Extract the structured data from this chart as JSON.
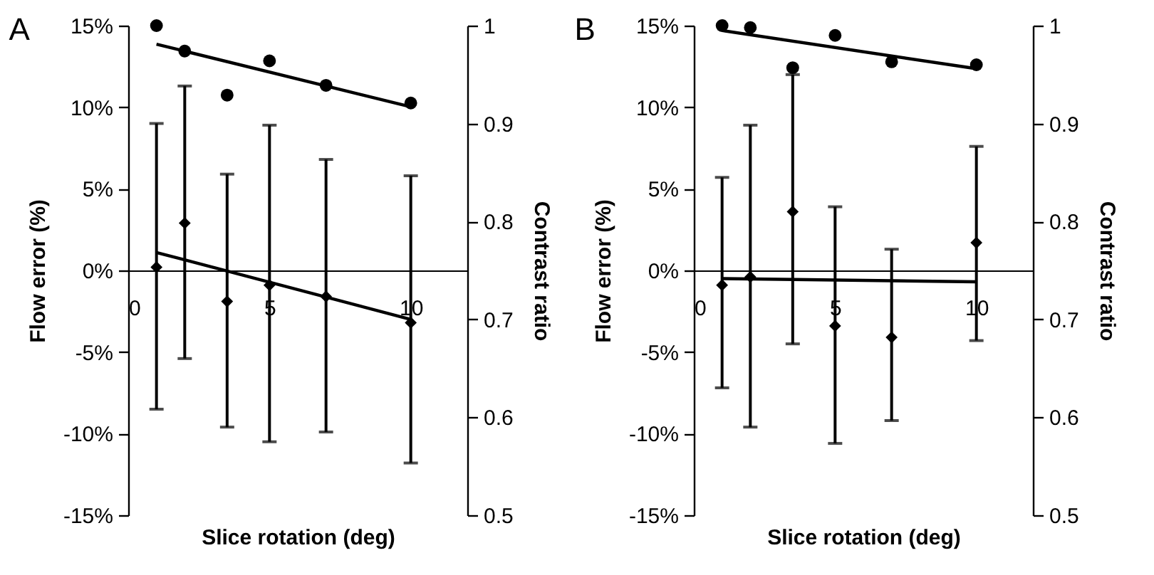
{
  "chart_data": [
    {
      "type": "scatter",
      "title": "A",
      "xlabel": "Slice rotation (deg)",
      "ylabel": "Flow error (%)",
      "y2label": "Contrast ratio",
      "xlim": [
        0,
        12
      ],
      "xticks": [
        0,
        5,
        10
      ],
      "ylim": [
        -15,
        15
      ],
      "yticks": [
        {
          "value": -15,
          "label": "-15%"
        },
        {
          "value": -10,
          "label": "-10%"
        },
        {
          "value": -5,
          "label": "-5%"
        },
        {
          "value": 0,
          "label": "0%"
        },
        {
          "value": 5,
          "label": "5%"
        },
        {
          "value": 10,
          "label": "10%"
        },
        {
          "value": 15,
          "label": "15%"
        }
      ],
      "y2lim": [
        0.5,
        1
      ],
      "y2ticks": [
        0.5,
        0.6,
        0.7,
        0.8,
        0.9,
        1
      ],
      "series": [
        {
          "marker": "diamond",
          "color": "#000000",
          "x": [
            1,
            2,
            3.5,
            5,
            7,
            10
          ],
          "values": [
            0.2,
            2.9,
            -1.9,
            -0.9,
            -1.6,
            -3.2
          ],
          "errors": [
            [
              -8.5,
              9.0
            ],
            [
              -5.4,
              11.3
            ],
            [
              -9.6,
              5.9
            ],
            [
              -10.5,
              8.9
            ],
            [
              -9.9,
              6.8
            ],
            [
              -11.8,
              5.8
            ]
          ]
        },
        {
          "marker": "circle",
          "axis": "y2",
          "color": "#000000",
          "x": [
            1,
            2,
            3.5,
            5,
            7,
            10
          ],
          "values": [
            1.0,
            0.974,
            0.929,
            0.964,
            0.939,
            0.921
          ]
        },
        {
          "type": "line",
          "color": "#000000",
          "x": [
            1,
            10
          ],
          "values": [
            1.1,
            -3.0
          ]
        },
        {
          "type": "line",
          "axis": "y2",
          "color": "#000000",
          "x": [
            1,
            10
          ],
          "values": [
            0.981,
            0.917
          ]
        }
      ]
    },
    {
      "type": "scatter",
      "title": "B",
      "xlabel": "Slice rotation (deg)",
      "ylabel": "Flow error (%)",
      "y2label": "Contrast ratio",
      "xlim": [
        0,
        12
      ],
      "xticks": [
        0,
        5,
        10
      ],
      "ylim": [
        -15,
        15
      ],
      "yticks": [
        {
          "value": -15,
          "label": "-15%"
        },
        {
          "value": -10,
          "label": "-10%"
        },
        {
          "value": -5,
          "label": "-5%"
        },
        {
          "value": 0,
          "label": "0%"
        },
        {
          "value": 5,
          "label": "5%"
        },
        {
          "value": 10,
          "label": "10%"
        },
        {
          "value": 15,
          "label": "15%"
        }
      ],
      "y2lim": [
        0.5,
        1
      ],
      "y2ticks": [
        0.5,
        0.6,
        0.7,
        0.8,
        0.9,
        1
      ],
      "series": [
        {
          "marker": "diamond",
          "color": "#000000",
          "x": [
            1,
            2,
            3.5,
            5,
            7,
            10
          ],
          "values": [
            -0.9,
            -0.4,
            3.6,
            -3.4,
            -4.1,
            1.7
          ],
          "errors": [
            [
              -7.2,
              5.7
            ],
            [
              -9.6,
              8.9
            ],
            [
              -4.5,
              12.0
            ],
            [
              -10.6,
              3.9
            ],
            [
              -9.2,
              1.3
            ],
            [
              -4.3,
              7.6
            ]
          ]
        },
        {
          "marker": "circle",
          "axis": "y2",
          "color": "#000000",
          "x": [
            1,
            2,
            3.5,
            5,
            7,
            10
          ],
          "values": [
            1.0,
            0.998,
            0.957,
            0.99,
            0.963,
            0.96
          ]
        },
        {
          "type": "line",
          "color": "#000000",
          "x": [
            1,
            10
          ],
          "values": [
            -0.5,
            -0.7
          ]
        },
        {
          "type": "line",
          "axis": "y2",
          "color": "#000000",
          "x": [
            1,
            10
          ],
          "values": [
            0.995,
            0.956
          ]
        }
      ]
    }
  ]
}
